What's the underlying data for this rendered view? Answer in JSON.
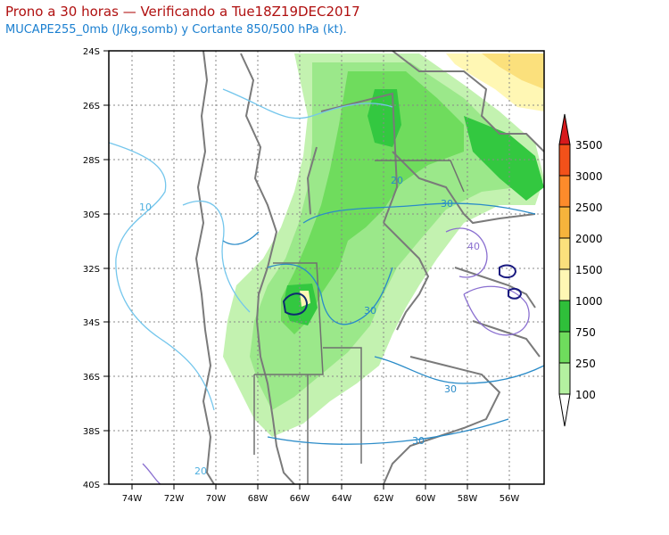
{
  "title": "Prono a 30 horas — Verificando a Tue18Z19DEC2017",
  "subtitle": "MUCAPE255_0mb (J/kg,somb) y Cortante 850/500 hPa (kt).",
  "lat_labels": [
    "24S",
    "26S",
    "28S",
    "30S",
    "32S",
    "34S",
    "36S",
    "38S",
    "40S"
  ],
  "lon_labels": [
    "74W",
    "72W",
    "70W",
    "68W",
    "66W",
    "64W",
    "62W",
    "60W",
    "58W",
    "56W"
  ],
  "colorbar": {
    "labels": [
      "3500",
      "3000",
      "2500",
      "2000",
      "1500",
      "1000",
      "750",
      "250",
      "100"
    ],
    "colors": [
      "#d7191c",
      "#f2511a",
      "#fd8b2b",
      "#f6b43c",
      "#fbe07c",
      "#fff7b4",
      "#2fbf3a",
      "#6fdc5d",
      "#b4f0a0"
    ]
  },
  "contour_labels": {
    "shear_10": "10",
    "shear_20_a": "20",
    "shear_20_b": "20",
    "shear_30_a": "30",
    "shear_30_b": "30",
    "shear_30_c": "30",
    "shear_30_d": "30",
    "shear_40": "40"
  }
}
